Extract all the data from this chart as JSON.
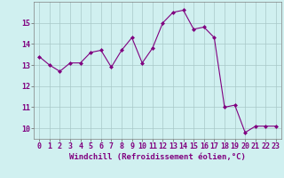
{
  "x": [
    0,
    1,
    2,
    3,
    4,
    5,
    6,
    7,
    8,
    9,
    10,
    11,
    12,
    13,
    14,
    15,
    16,
    17,
    18,
    19,
    20,
    21,
    22,
    23
  ],
  "y": [
    13.4,
    13.0,
    12.7,
    13.1,
    13.1,
    13.6,
    13.7,
    12.9,
    13.7,
    14.3,
    13.1,
    13.8,
    15.0,
    15.5,
    15.6,
    14.7,
    14.8,
    14.3,
    11.0,
    11.1,
    9.8,
    10.1,
    10.1,
    10.1
  ],
  "line_color": "#800080",
  "marker": "D",
  "marker_size": 2.5,
  "bg_color": "#d0f0f0",
  "grid_color": "#a8c8c8",
  "xlabel": "Windchill (Refroidissement éolien,°C)",
  "xlabel_fontsize": 6.5,
  "tick_fontsize": 6,
  "xlim": [
    -0.5,
    23.5
  ],
  "ylim": [
    9.5,
    16.0
  ],
  "yticks": [
    10,
    11,
    12,
    13,
    14,
    15
  ],
  "xticks": [
    0,
    1,
    2,
    3,
    4,
    5,
    6,
    7,
    8,
    9,
    10,
    11,
    12,
    13,
    14,
    15,
    16,
    17,
    18,
    19,
    20,
    21,
    22,
    23
  ]
}
